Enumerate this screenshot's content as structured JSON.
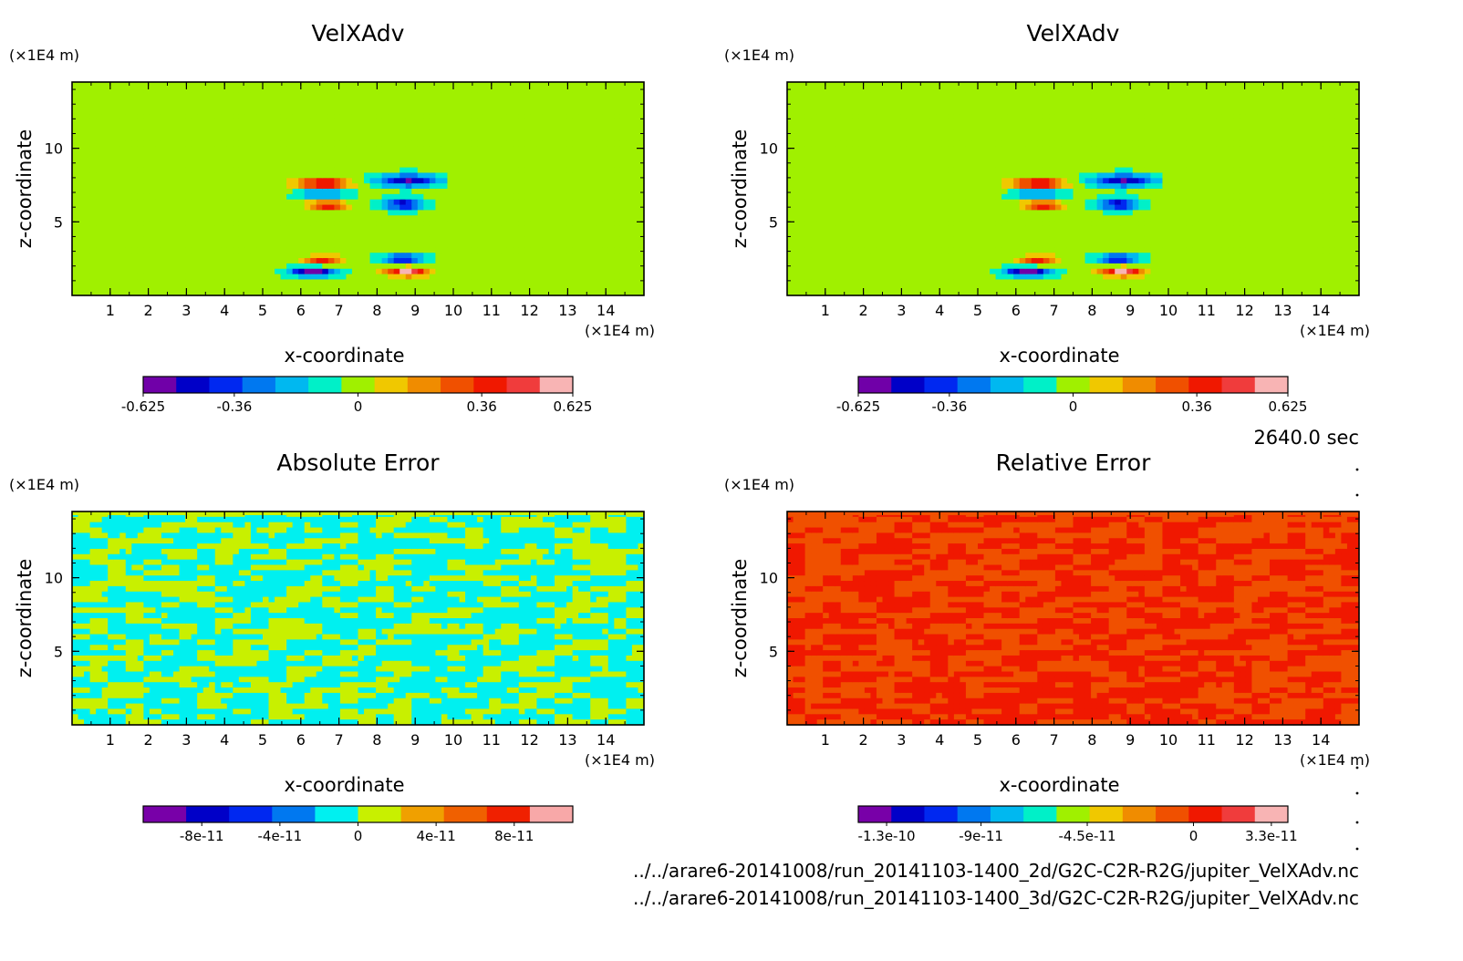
{
  "chart_data": [
    {
      "type": "heatmap",
      "title": "VelXAdv",
      "xlabel": "x-coordinate",
      "ylabel": "z-coordinate",
      "x_unit": "(×1E4 m)",
      "y_unit": "(×1E4 m)",
      "x_ticks": [
        "1",
        "2",
        "3",
        "4",
        "5",
        "6",
        "7",
        "8",
        "9",
        "10",
        "11",
        "12",
        "13",
        "14"
      ],
      "y_ticks": [
        "5",
        "10"
      ],
      "xlim": [
        0,
        15
      ],
      "ylim": [
        0,
        14.5
      ],
      "pattern": "field",
      "colorbar": {
        "colors": [
          "#7000a8",
          "#0000c8",
          "#0028f0",
          "#0078f0",
          "#00b8f0",
          "#00f0c8",
          "#a0f000",
          "#f0c800",
          "#f08c00",
          "#f05000",
          "#f01800",
          "#f03c3c",
          "#f8b4b4"
        ],
        "range": [
          -0.625,
          0.625
        ],
        "labels": [
          "-0.625",
          "-0.36",
          "0",
          "0.36",
          "0.625"
        ],
        "label_values": [
          -0.625,
          -0.36,
          0,
          0.36,
          0.625
        ]
      }
    },
    {
      "type": "heatmap",
      "title": "VelXAdv",
      "xlabel": "x-coordinate",
      "ylabel": "z-coordinate",
      "x_unit": "(×1E4 m)",
      "y_unit": "(×1E4 m)",
      "x_ticks": [
        "1",
        "2",
        "3",
        "4",
        "5",
        "6",
        "7",
        "8",
        "9",
        "10",
        "11",
        "12",
        "13",
        "14"
      ],
      "y_ticks": [
        "5",
        "10"
      ],
      "xlim": [
        0,
        15
      ],
      "ylim": [
        0,
        14.5
      ],
      "pattern": "field",
      "colorbar": {
        "colors": [
          "#7000a8",
          "#0000c8",
          "#0028f0",
          "#0078f0",
          "#00b8f0",
          "#00f0c8",
          "#a0f000",
          "#f0c800",
          "#f08c00",
          "#f05000",
          "#f01800",
          "#f03c3c",
          "#f8b4b4"
        ],
        "range": [
          -0.625,
          0.625
        ],
        "labels": [
          "-0.625",
          "-0.36",
          "0",
          "0.36",
          "0.625"
        ],
        "label_values": [
          -0.625,
          -0.36,
          0,
          0.36,
          0.625
        ]
      }
    },
    {
      "type": "heatmap",
      "title": "Absolute Error",
      "xlabel": "x-coordinate",
      "ylabel": "z-coordinate",
      "x_unit": "(×1E4 m)",
      "y_unit": "(×1E4 m)",
      "x_ticks": [
        "1",
        "2",
        "3",
        "4",
        "5",
        "6",
        "7",
        "8",
        "9",
        "10",
        "11",
        "12",
        "13",
        "14"
      ],
      "y_ticks": [
        "5",
        "10"
      ],
      "xlim": [
        0,
        15
      ],
      "ylim": [
        0,
        14.5
      ],
      "pattern": "abs",
      "colorbar": {
        "colors": [
          "#7800a8",
          "#0000c8",
          "#0028f0",
          "#0078f0",
          "#00f0f0",
          "#c8f000",
          "#f0a000",
          "#f06000",
          "#f02000",
          "#f8a8a8"
        ],
        "range": [
          -1.1e-10,
          1.1e-10
        ],
        "labels": [
          "-8e-11",
          "-4e-11",
          "0",
          "4e-11",
          "8e-11"
        ],
        "label_values": [
          -8e-11,
          -4e-11,
          0,
          4e-11,
          8e-11
        ]
      }
    },
    {
      "type": "heatmap",
      "title": "Relative Error",
      "xlabel": "x-coordinate",
      "ylabel": "z-coordinate",
      "x_unit": "(×1E4 m)",
      "y_unit": "(×1E4 m)",
      "x_ticks": [
        "1",
        "2",
        "3",
        "4",
        "5",
        "6",
        "7",
        "8",
        "9",
        "10",
        "11",
        "12",
        "13",
        "14"
      ],
      "y_ticks": [
        "5",
        "10"
      ],
      "xlim": [
        0,
        15
      ],
      "ylim": [
        0,
        14.5
      ],
      "pattern": "rel",
      "colorbar": {
        "colors": [
          "#7800a8",
          "#0000c8",
          "#0028f0",
          "#0078f0",
          "#00b8f0",
          "#00f0c8",
          "#a0f000",
          "#f0c800",
          "#f08c00",
          "#f05000",
          "#f01800",
          "#f03c3c",
          "#f8b4b4"
        ],
        "range": [
          -1.42e-10,
          4e-11
        ],
        "labels": [
          "-1.3e-10",
          "-9e-11",
          "-4.5e-11",
          "0",
          "3.3e-11"
        ],
        "label_values": [
          -1.3e-10,
          -9e-11,
          -4.5e-11,
          0,
          3.3e-11
        ]
      }
    }
  ],
  "time_label": "2640.0 sec",
  "file_paths": [
    "../../arare6-20141008/run_20141103-1400_2d/G2C-C2R-R2G/jupiter_VelXAdv.nc",
    "../../arare6-20141008/run_20141103-1400_3d/G2C-C2R-R2G/jupiter_VelXAdv.nc"
  ]
}
